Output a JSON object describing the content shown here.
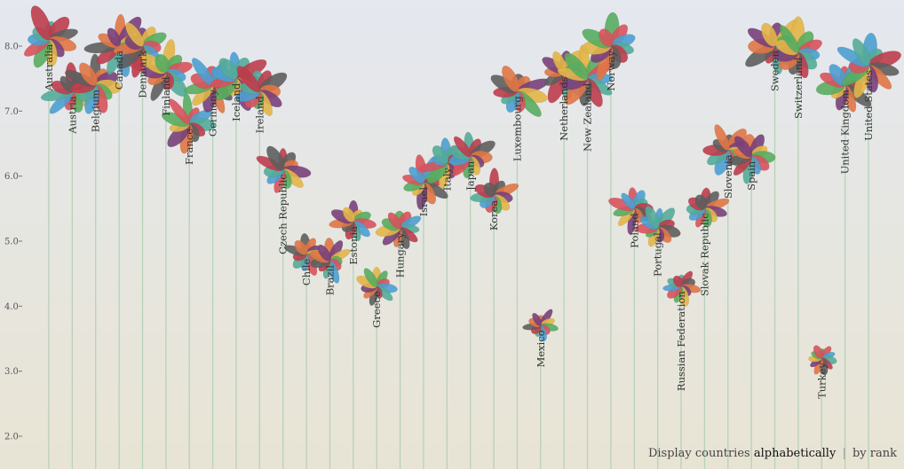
{
  "chart_data": {
    "type": "flower-scatter",
    "y_axis": {
      "ticks": [
        {
          "value": 2,
          "label": "2.0"
        },
        {
          "value": 3,
          "label": "3.0"
        },
        {
          "value": 4,
          "label": "4.0"
        },
        {
          "value": 5,
          "label": "5.0"
        },
        {
          "value": 6,
          "label": "6.0"
        },
        {
          "value": 7,
          "label": "7.0"
        },
        {
          "value": 8,
          "label": "8.0"
        }
      ],
      "range": [
        1.5,
        8.5
      ]
    },
    "petal_colors": [
      "#54ab99",
      "#bd3d4c",
      "#5e5e5e",
      "#df7546",
      "#79407a",
      "#e2b548",
      "#58ac60",
      "#d7535c",
      "#4c9fd2"
    ],
    "countries": [
      {
        "name": "Australia",
        "value": 8.1
      },
      {
        "name": "Austria",
        "value": 7.3
      },
      {
        "name": "Belgium",
        "value": 7.4
      },
      {
        "name": "Canada",
        "value": 8.0
      },
      {
        "name": "Denmark",
        "value": 8.0
      },
      {
        "name": "Finland",
        "value": 7.6
      },
      {
        "name": "France",
        "value": 6.8
      },
      {
        "name": "Germany",
        "value": 7.4
      },
      {
        "name": "Iceland",
        "value": 7.5
      },
      {
        "name": "Ireland",
        "value": 7.3
      },
      {
        "name": "Czech Republic",
        "value": 6.1
      },
      {
        "name": "Chile",
        "value": 4.8
      },
      {
        "name": "Brazil",
        "value": 4.7
      },
      {
        "name": "Estonia",
        "value": 5.3
      },
      {
        "name": "Greece",
        "value": 4.3
      },
      {
        "name": "Hungary",
        "value": 5.2
      },
      {
        "name": "Israel",
        "value": 5.9
      },
      {
        "name": "Italy",
        "value": 6.2
      },
      {
        "name": "Japan",
        "value": 6.3
      },
      {
        "name": "Korea",
        "value": 5.7
      },
      {
        "name": "Luxembourg",
        "value": 7.3
      },
      {
        "name": "Mexico",
        "value": 3.7
      },
      {
        "name": "Netherlands",
        "value": 7.6
      },
      {
        "name": "New Zealand",
        "value": 7.5
      },
      {
        "name": "Norway",
        "value": 8.0
      },
      {
        "name": "Poland",
        "value": 5.5
      },
      {
        "name": "Portugal",
        "value": 5.2
      },
      {
        "name": "Russian Federation",
        "value": 4.3
      },
      {
        "name": "Slovak Republic",
        "value": 5.5
      },
      {
        "name": "Slovenia",
        "value": 6.4
      },
      {
        "name": "Spain",
        "value": 6.3
      },
      {
        "name": "Sweden",
        "value": 8.0
      },
      {
        "name": "Switzerland",
        "value": 7.9
      },
      {
        "name": "Turkey",
        "value": 3.2
      },
      {
        "name": "United Kingdom",
        "value": 7.4
      },
      {
        "name": "United States",
        "value": 7.7
      }
    ]
  },
  "sort_controls": {
    "prefix": "Display countries",
    "option_alpha": "alphabetically",
    "separator": "|",
    "option_rank": "by rank"
  }
}
